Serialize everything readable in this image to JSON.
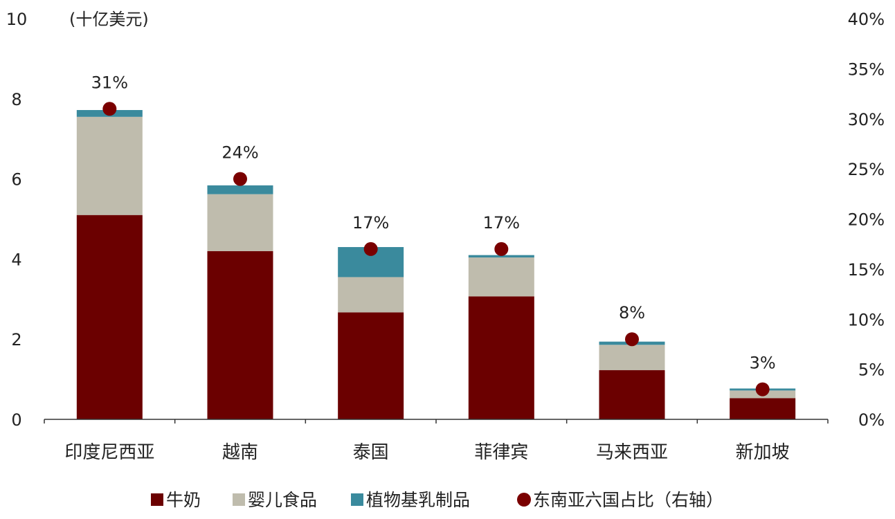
{
  "chart_data": {
    "type": "bar",
    "stacked": true,
    "unit_label": "(十亿美元)",
    "categories": [
      "印度尼西亚",
      "越南",
      "泰国",
      "菲律宾",
      "马来西亚",
      "新加坡"
    ],
    "series": [
      {
        "name": "牛奶",
        "color": "#6b0000",
        "values": [
          5.1,
          4.2,
          2.67,
          3.07,
          1.23,
          0.53
        ]
      },
      {
        "name": "婴儿食品",
        "color": "#bfbcad",
        "values": [
          2.45,
          1.42,
          0.88,
          0.97,
          0.63,
          0.19
        ]
      },
      {
        "name": "植物基乳制品",
        "color": "#3a8a9d",
        "values": [
          0.17,
          0.22,
          0.75,
          0.06,
          0.08,
          0.05
        ]
      }
    ],
    "share_series": {
      "name": "东南亚六国占比（右轴）",
      "color": "#7a0000",
      "axis": "right",
      "values": [
        31,
        24,
        17,
        17,
        8,
        3
      ],
      "labels": [
        "31%",
        "24%",
        "17%",
        "17%",
        "8%",
        "3%"
      ]
    },
    "y_left": {
      "min": 0,
      "max": 10,
      "ticks": [
        "0",
        "2",
        "4",
        "6",
        "8",
        "10"
      ]
    },
    "y_right": {
      "min": 0,
      "max": 40,
      "ticks": [
        "0%",
        "5%",
        "10%",
        "15%",
        "20%",
        "25%",
        "30%",
        "35%",
        "40%"
      ]
    },
    "grid": false,
    "legend_position": "bottom"
  }
}
